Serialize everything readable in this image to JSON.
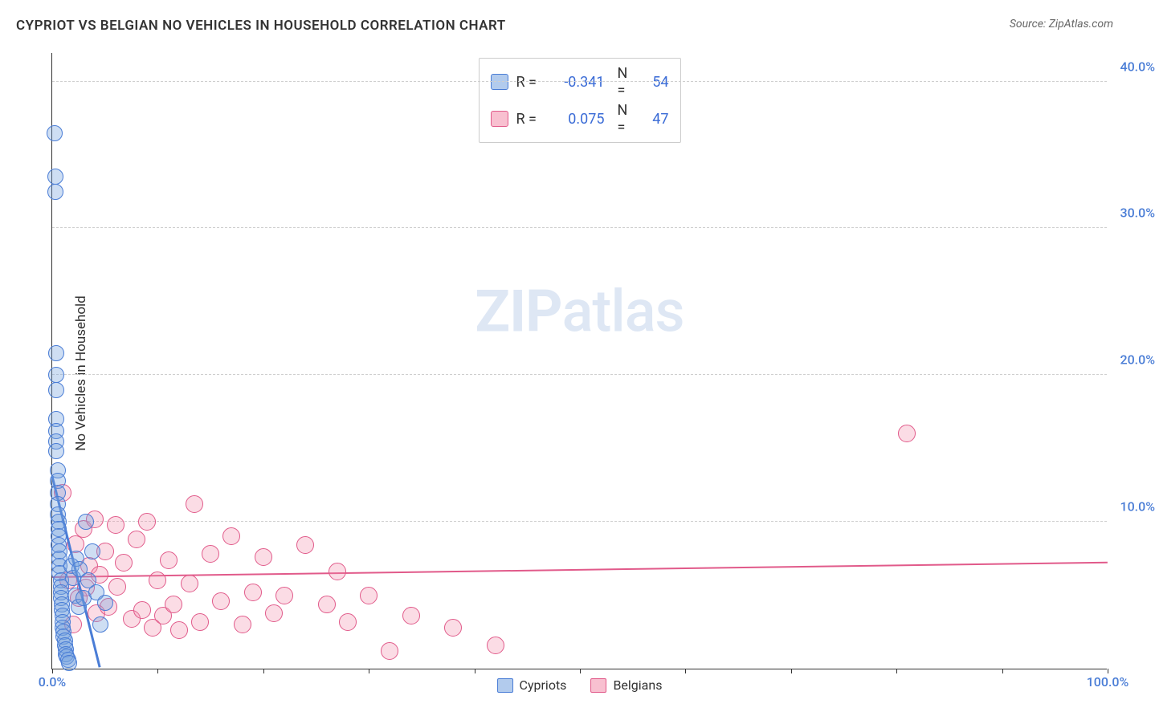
{
  "title": "CYPRIOT VS BELGIAN NO VEHICLES IN HOUSEHOLD CORRELATION CHART",
  "source_label": "Source: ZipAtlas.com",
  "ylabel": "No Vehicles in Household",
  "watermark_zip": "ZIP",
  "watermark_atlas": "atlas",
  "axes": {
    "x_min": 0,
    "x_max": 100,
    "y_min": 0,
    "y_max": 42,
    "y_ticks": [
      10,
      20,
      30,
      40
    ],
    "y_tick_labels": [
      "10.0%",
      "20.0%",
      "30.0%",
      "40.0%"
    ],
    "x_ticks": [
      0,
      10,
      20,
      30,
      40,
      50,
      60,
      70,
      80,
      90,
      100
    ],
    "x_tick_labels": {
      "0": "0.0%",
      "100": "100.0%"
    },
    "grid_color": "#cfcfcf",
    "axis_color": "#333333",
    "tick_label_color": "#4a7dd6"
  },
  "legend_stats": [
    {
      "series": "cypriots",
      "r_label": "R =",
      "r_value": "-0.341",
      "n_label": "N =",
      "n_value": "54"
    },
    {
      "series": "belgians",
      "r_label": "R =",
      "r_value": "0.075",
      "n_label": "N =",
      "n_value": "47"
    }
  ],
  "bottom_legend": [
    {
      "id": "cypriots",
      "label": "Cypriots"
    },
    {
      "id": "belgians",
      "label": "Belgians"
    }
  ],
  "series": {
    "cypriots": {
      "fill": "rgba(114,160,222,0.35)",
      "stroke": "#4a7dd6",
      "swatch_fill": "rgba(114,160,222,0.55)",
      "trend": {
        "x1": 0,
        "y1": 13.0,
        "x2": 4.5,
        "y2": 0.0,
        "width": 3
      },
      "point_radius": 10,
      "points": [
        {
          "x": 0.2,
          "y": 36.5
        },
        {
          "x": 0.3,
          "y": 33.5
        },
        {
          "x": 0.3,
          "y": 32.5
        },
        {
          "x": 0.4,
          "y": 21.5
        },
        {
          "x": 0.4,
          "y": 20.0
        },
        {
          "x": 0.4,
          "y": 19.0
        },
        {
          "x": 0.4,
          "y": 17.0
        },
        {
          "x": 0.4,
          "y": 16.2
        },
        {
          "x": 0.4,
          "y": 15.5
        },
        {
          "x": 0.4,
          "y": 14.8
        },
        {
          "x": 0.5,
          "y": 13.5
        },
        {
          "x": 0.5,
          "y": 12.8
        },
        {
          "x": 0.5,
          "y": 12.0
        },
        {
          "x": 0.5,
          "y": 11.2
        },
        {
          "x": 0.5,
          "y": 10.5
        },
        {
          "x": 0.6,
          "y": 10.0
        },
        {
          "x": 0.6,
          "y": 9.5
        },
        {
          "x": 0.6,
          "y": 9.0
        },
        {
          "x": 0.6,
          "y": 8.4
        },
        {
          "x": 0.7,
          "y": 8.0
        },
        {
          "x": 0.7,
          "y": 7.5
        },
        {
          "x": 0.7,
          "y": 7.0
        },
        {
          "x": 0.7,
          "y": 6.5
        },
        {
          "x": 0.8,
          "y": 6.0
        },
        {
          "x": 0.8,
          "y": 5.6
        },
        {
          "x": 0.8,
          "y": 5.2
        },
        {
          "x": 0.8,
          "y": 4.8
        },
        {
          "x": 0.9,
          "y": 4.4
        },
        {
          "x": 0.9,
          "y": 4.0
        },
        {
          "x": 1.0,
          "y": 3.6
        },
        {
          "x": 1.0,
          "y": 3.2
        },
        {
          "x": 1.0,
          "y": 2.8
        },
        {
          "x": 1.1,
          "y": 2.5
        },
        {
          "x": 1.1,
          "y": 2.2
        },
        {
          "x": 1.2,
          "y": 1.9
        },
        {
          "x": 1.2,
          "y": 1.6
        },
        {
          "x": 1.3,
          "y": 1.3
        },
        {
          "x": 1.3,
          "y": 1.0
        },
        {
          "x": 1.4,
          "y": 0.8
        },
        {
          "x": 1.5,
          "y": 0.6
        },
        {
          "x": 1.6,
          "y": 0.4
        },
        {
          "x": 1.8,
          "y": 7.0
        },
        {
          "x": 2.0,
          "y": 6.2
        },
        {
          "x": 2.2,
          "y": 5.0
        },
        {
          "x": 2.3,
          "y": 7.5
        },
        {
          "x": 2.5,
          "y": 4.2
        },
        {
          "x": 2.6,
          "y": 6.8
        },
        {
          "x": 3.0,
          "y": 4.8
        },
        {
          "x": 3.2,
          "y": 10.0
        },
        {
          "x": 3.4,
          "y": 6.0
        },
        {
          "x": 3.8,
          "y": 8.0
        },
        {
          "x": 4.2,
          "y": 5.2
        },
        {
          "x": 4.6,
          "y": 3.0
        },
        {
          "x": 5.0,
          "y": 4.5
        }
      ]
    },
    "belgians": {
      "fill": "rgba(242,140,170,0.30)",
      "stroke": "#e15a8a",
      "swatch_fill": "rgba(242,140,170,0.55)",
      "trend": {
        "x1": 0,
        "y1": 6.2,
        "x2": 100,
        "y2": 7.2,
        "width": 2
      },
      "point_radius": 11,
      "points": [
        {
          "x": 1.0,
          "y": 12.0
        },
        {
          "x": 1.5,
          "y": 6.0
        },
        {
          "x": 2.0,
          "y": 3.0
        },
        {
          "x": 2.2,
          "y": 8.5
        },
        {
          "x": 2.5,
          "y": 4.8
        },
        {
          "x": 3.0,
          "y": 9.5
        },
        {
          "x": 3.2,
          "y": 5.5
        },
        {
          "x": 3.5,
          "y": 7.0
        },
        {
          "x": 4.0,
          "y": 10.2
        },
        {
          "x": 4.2,
          "y": 3.8
        },
        {
          "x": 4.5,
          "y": 6.4
        },
        {
          "x": 5.0,
          "y": 8.0
        },
        {
          "x": 5.3,
          "y": 4.2
        },
        {
          "x": 6.0,
          "y": 9.8
        },
        {
          "x": 6.2,
          "y": 5.6
        },
        {
          "x": 6.8,
          "y": 7.2
        },
        {
          "x": 7.5,
          "y": 3.4
        },
        {
          "x": 8.0,
          "y": 8.8
        },
        {
          "x": 8.5,
          "y": 4.0
        },
        {
          "x": 9.0,
          "y": 10.0
        },
        {
          "x": 9.5,
          "y": 2.8
        },
        {
          "x": 10.0,
          "y": 6.0
        },
        {
          "x": 10.5,
          "y": 3.6
        },
        {
          "x": 11.0,
          "y": 7.4
        },
        {
          "x": 11.5,
          "y": 4.4
        },
        {
          "x": 12.0,
          "y": 2.6
        },
        {
          "x": 13.0,
          "y": 5.8
        },
        {
          "x": 13.5,
          "y": 11.2
        },
        {
          "x": 14.0,
          "y": 3.2
        },
        {
          "x": 15.0,
          "y": 7.8
        },
        {
          "x": 16.0,
          "y": 4.6
        },
        {
          "x": 17.0,
          "y": 9.0
        },
        {
          "x": 18.0,
          "y": 3.0
        },
        {
          "x": 19.0,
          "y": 5.2
        },
        {
          "x": 20.0,
          "y": 7.6
        },
        {
          "x": 21.0,
          "y": 3.8
        },
        {
          "x": 22.0,
          "y": 5.0
        },
        {
          "x": 24.0,
          "y": 8.4
        },
        {
          "x": 26.0,
          "y": 4.4
        },
        {
          "x": 27.0,
          "y": 6.6
        },
        {
          "x": 28.0,
          "y": 3.2
        },
        {
          "x": 30.0,
          "y": 5.0
        },
        {
          "x": 32.0,
          "y": 1.2
        },
        {
          "x": 34.0,
          "y": 3.6
        },
        {
          "x": 38.0,
          "y": 2.8
        },
        {
          "x": 42.0,
          "y": 1.6
        },
        {
          "x": 81.0,
          "y": 16.0
        }
      ]
    }
  }
}
